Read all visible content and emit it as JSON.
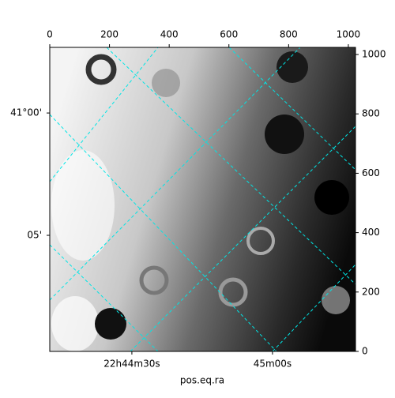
{
  "chart_data": {
    "type": "image",
    "xlabel": "pos.eq.ra",
    "xlim": [
      0,
      1024
    ],
    "ylim": [
      0,
      1024
    ],
    "xticks": [
      0,
      200,
      400,
      600,
      800,
      1000
    ],
    "yticks": [
      0,
      200,
      400,
      600,
      800,
      1000
    ],
    "ra_ticks": [
      {
        "value": 275,
        "label": "22h44m30s"
      },
      {
        "value": 746,
        "label": "45m00s"
      }
    ],
    "dec_ticks": [
      {
        "value": 803,
        "label": "41°00'"
      },
      {
        "value": 391,
        "label": "05'"
      }
    ],
    "grid_color": "#00e5e5"
  }
}
